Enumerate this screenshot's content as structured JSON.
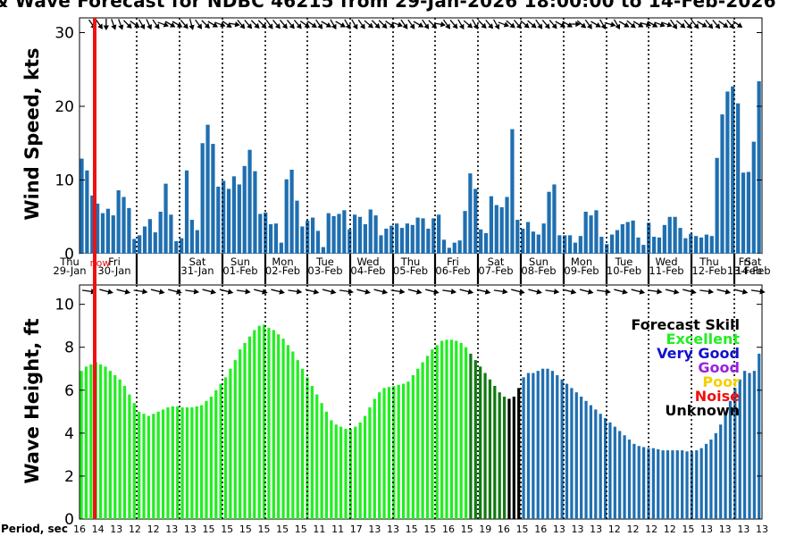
{
  "chart_data": {
    "type": "bar",
    "title": "& Wave Forecast for NDBC 46215 from 29-Jan-2026 18:00:00 to 14-Feb-2026",
    "now_label": "now",
    "day_labels": [
      {
        "dow": "Thu",
        "date": "29-Jan"
      },
      {
        "dow": "Fri",
        "date": "30-Jan"
      },
      {
        "dow": "Sat",
        "date": "31-Jan"
      },
      {
        "dow": "Sun",
        "date": "01-Feb"
      },
      {
        "dow": "Mon",
        "date": "02-Feb"
      },
      {
        "dow": "Tue",
        "date": "03-Feb"
      },
      {
        "dow": "Wed",
        "date": "04-Feb"
      },
      {
        "dow": "Thu",
        "date": "05-Feb"
      },
      {
        "dow": "Fri",
        "date": "06-Feb"
      },
      {
        "dow": "Sat",
        "date": "07-Feb"
      },
      {
        "dow": "Sun",
        "date": "08-Feb"
      },
      {
        "dow": "Mon",
        "date": "09-Feb"
      },
      {
        "dow": "Tue",
        "date": "10-Feb"
      },
      {
        "dow": "Wed",
        "date": "11-Feb"
      },
      {
        "dow": "Thu",
        "date": "12-Feb"
      },
      {
        "dow": "Fri",
        "date": "13-Feb"
      },
      {
        "dow": "Sat",
        "date": "14-Feb"
      }
    ],
    "wind": {
      "ylabel": "Wind Speed, kts",
      "ylim": [
        0,
        32
      ],
      "yticks": [
        "0",
        "10",
        "20",
        "30"
      ],
      "color": "#1f6fb0",
      "values": [
        12.9,
        11.3,
        7.9,
        6.8,
        5.5,
        6.1,
        5.2,
        8.6,
        7.7,
        6.2,
        2.0,
        2.5,
        3.7,
        4.7,
        2.9,
        5.7,
        9.5,
        5.3,
        1.7,
        2.1,
        11.3,
        4.6,
        3.2,
        15.0,
        17.5,
        14.9,
        9.1,
        9.9,
        8.8,
        10.5,
        9.4,
        11.9,
        14.1,
        11.2,
        5.4,
        5.6,
        4.0,
        4.1,
        1.5,
        10.1,
        11.4,
        7.2,
        3.7,
        4.5,
        4.9,
        3.1,
        0.9,
        5.5,
        5.1,
        5.4,
        5.9,
        3.3,
        5.3,
        5.0,
        4.0,
        6.0,
        5.2,
        2.5,
        3.4,
        3.8,
        4.1,
        3.5,
        4.1,
        3.9,
        4.9,
        4.8,
        3.4,
        4.8,
        5.3,
        1.9,
        0.8,
        1.5,
        1.8,
        5.8,
        10.9,
        8.8,
        3.3,
        2.8,
        7.8,
        6.6,
        6.3,
        7.7,
        16.9,
        4.6,
        3.4,
        4.3,
        3.0,
        2.6,
        4.1,
        8.4,
        9.4,
        2.5,
        2.5,
        2.5,
        1.5,
        2.4,
        5.7,
        5.2,
        5.9,
        2.3,
        1.3,
        2.6,
        3.2,
        4.0,
        4.3,
        4.5,
        2.2,
        1.2,
        4.2,
        2.3,
        2.2,
        3.9,
        5.0,
        5.0,
        3.5,
        2.1,
        2.7,
        2.4,
        2.2,
        2.6,
        2.4,
        13.0,
        18.9,
        22.0,
        22.7,
        20.4,
        11.0,
        11.1,
        15.2,
        23.4
      ],
      "direction_arrow_angles": [
        -35,
        -35,
        0,
        -20,
        -20,
        -45,
        -55,
        -30,
        -25,
        -35,
        -70,
        -60,
        -60,
        -40,
        -15,
        -35,
        -45,
        -60,
        -70,
        -55,
        -80,
        -40,
        -40,
        -45,
        -45,
        -35,
        -40,
        -40,
        -40,
        -40,
        -55,
        -55,
        -35,
        -60,
        -30,
        -60,
        -30,
        -30,
        -35,
        -50,
        -45,
        -45,
        -55,
        -70,
        -35,
        -35,
        -60,
        -35,
        -45,
        -80,
        -35,
        -40,
        -30,
        -50,
        -30,
        -45,
        -40,
        -30,
        -70,
        -50,
        -40,
        -50,
        -50,
        -35,
        -40,
        -40,
        -60,
        -60,
        -90,
        -50,
        -35,
        -60,
        -30,
        -75,
        -30,
        -60,
        -50,
        -60,
        -75,
        -60,
        -70,
        -70,
        -35,
        -50,
        -40,
        -40,
        -60,
        -40,
        -40,
        -55,
        -40,
        -55
      ]
    },
    "wave": {
      "ylabel": "Wave Height, ft",
      "ylim": [
        0,
        10.9
      ],
      "yticks": [
        "0",
        "2",
        "4",
        "6",
        "8",
        "10"
      ],
      "values": [
        6.9,
        7.1,
        7.2,
        7.3,
        7.2,
        7.1,
        6.9,
        6.7,
        6.5,
        6.2,
        5.8,
        5.4,
        5.0,
        4.9,
        4.8,
        4.9,
        5.0,
        5.1,
        5.2,
        5.25,
        5.25,
        5.2,
        5.2,
        5.2,
        5.25,
        5.3,
        5.5,
        5.7,
        6.0,
        6.3,
        6.6,
        7.0,
        7.4,
        7.9,
        8.2,
        8.5,
        8.8,
        9.0,
        9.05,
        8.9,
        8.8,
        8.6,
        8.4,
        8.1,
        7.8,
        7.4,
        7.0,
        6.6,
        6.2,
        5.8,
        5.4,
        5.0,
        4.6,
        4.4,
        4.3,
        4.2,
        4.2,
        4.3,
        4.5,
        4.8,
        5.2,
        5.6,
        5.9,
        6.1,
        6.15,
        6.2,
        6.25,
        6.3,
        6.4,
        6.7,
        7.0,
        7.3,
        7.6,
        7.9,
        8.1,
        8.3,
        8.35,
        8.35,
        8.3,
        8.2,
        8.0,
        7.7,
        7.4,
        7.1,
        6.8,
        6.5,
        6.2,
        5.9,
        5.7,
        5.6,
        5.7,
        6.1,
        6.6,
        6.8,
        6.8,
        6.9,
        7.0,
        7.0,
        6.9,
        6.7,
        6.5,
        6.3,
        6.1,
        5.9,
        5.7,
        5.5,
        5.3,
        5.1,
        4.9,
        4.7,
        4.5,
        4.3,
        4.1,
        3.9,
        3.7,
        3.5,
        3.4,
        3.35,
        3.3,
        3.3,
        3.25,
        3.2,
        3.2,
        3.2,
        3.2,
        3.2,
        3.15,
        3.15,
        3.2,
        3.3,
        3.5,
        3.7,
        4.0,
        4.4,
        4.9,
        5.5,
        6.1,
        6.5,
        6.9,
        6.8,
        6.9,
        7.7
      ],
      "period_label": "Period, sec",
      "period_values": [
        "16",
        "14",
        "13",
        "12",
        "12",
        "13",
        "13",
        "15",
        "15",
        "15",
        "15",
        "15",
        "15",
        "11",
        "11",
        "17",
        "13",
        "13",
        "15",
        "15",
        "16",
        "15",
        "19",
        "16",
        "15",
        "16",
        "13",
        "13",
        "13",
        "12",
        "12",
        "12",
        "12",
        "15",
        "13",
        "13",
        "13",
        "13"
      ],
      "period_every": 4
    },
    "legend": {
      "title": "Forecast Skill",
      "items": [
        {
          "label": "Excellent",
          "color": "#22ee22"
        },
        {
          "label": "Very Good",
          "color": "#1111cc"
        },
        {
          "label": "Good",
          "color": "#9922dd"
        },
        {
          "label": "Poor",
          "color": "#f5d000"
        },
        {
          "label": "Noise",
          "color": "#ee1111"
        },
        {
          "label": "Unknown",
          "color": "#000000"
        }
      ],
      "placement": "right"
    },
    "colors": {
      "wave_excellent": "#22ee22",
      "wave_dark_green": "#107a10",
      "wave_unknown": "#000000",
      "wave_unclassified": "#1f6fb0",
      "now_line": "#ee1111"
    }
  }
}
